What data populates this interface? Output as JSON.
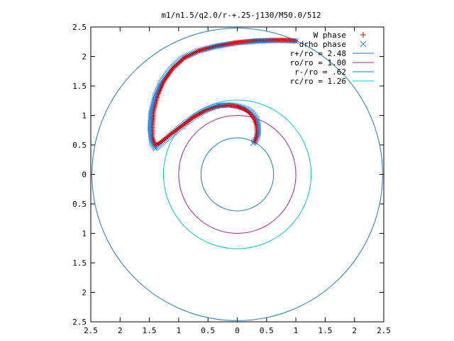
{
  "chart_data": {
    "type": "scatter",
    "title": "m1/n1.5/q2.0/r-+.25-j130/M50.0/512",
    "xlabel": "",
    "ylabel": "",
    "xlim": [
      -2.5,
      2.5
    ],
    "ylim": [
      -2.5,
      2.5
    ],
    "grid": false,
    "legend_position": "top-right",
    "x_ticks": [
      {
        "value": -2.5,
        "label": "2.5"
      },
      {
        "value": -2,
        "label": "2"
      },
      {
        "value": -1.5,
        "label": "1.5"
      },
      {
        "value": -1,
        "label": "1"
      },
      {
        "value": -0.5,
        "label": "0.5"
      },
      {
        "value": 0,
        "label": "0"
      },
      {
        "value": 0.5,
        "label": "0.5"
      },
      {
        "value": 1,
        "label": "1"
      },
      {
        "value": 1.5,
        "label": "1.5"
      },
      {
        "value": 2,
        "label": "2"
      },
      {
        "value": 2.5,
        "label": "2.5"
      }
    ],
    "y_ticks": [
      {
        "value": 2.5,
        "label": "2.5"
      },
      {
        "value": 2,
        "label": "2"
      },
      {
        "value": 1.5,
        "label": "1.5"
      },
      {
        "value": 1,
        "label": "1"
      },
      {
        "value": 0.5,
        "label": "0.5"
      },
      {
        "value": 0,
        "label": "0"
      },
      {
        "value": -0.5,
        "label": "0.5"
      },
      {
        "value": -1,
        "label": "1"
      },
      {
        "value": -1.5,
        "label": "1.5"
      },
      {
        "value": -2,
        "label": "2"
      },
      {
        "value": -2.5,
        "label": "2.5"
      }
    ],
    "circles": [
      {
        "name": "r+/ro = 2.48",
        "radius": 2.48,
        "color": "#1a7bc4"
      },
      {
        "name": "ro/ro = 1.00",
        "radius": 1.0,
        "color": "#a020a0"
      },
      {
        "name": "r-/ro = .62",
        "radius": 0.62,
        "color": "#1a7bc4"
      },
      {
        "name": "rc/ro = 1.26",
        "radius": 1.26,
        "color": "#00c8d8"
      }
    ],
    "series": [
      {
        "name": "W phase",
        "marker": "plus",
        "color": "#e00000",
        "x": [
          0.3,
          0.32,
          0.33,
          0.32,
          0.28,
          0.2,
          0.1,
          0.0,
          -0.15,
          -0.35,
          -0.55,
          -0.75,
          -0.95,
          -1.15,
          -1.3,
          -1.4,
          -1.44,
          -1.44,
          -1.42,
          -1.35,
          -1.25,
          -1.1,
          -0.9,
          -0.65,
          -0.35,
          0.0,
          0.3,
          0.6,
          0.85,
          1.0
        ],
        "y": [
          0.55,
          0.62,
          0.72,
          0.84,
          0.95,
          1.05,
          1.11,
          1.15,
          1.17,
          1.15,
          1.08,
          0.97,
          0.82,
          0.67,
          0.55,
          0.5,
          0.62,
          0.82,
          1.08,
          1.35,
          1.58,
          1.8,
          1.98,
          2.1,
          2.18,
          2.24,
          2.27,
          2.28,
          2.28,
          2.27
        ]
      },
      {
        "name": "drho phase",
        "marker": "x",
        "color": "#1a8ae8",
        "x": [
          0.27,
          0.33,
          0.36,
          0.36,
          0.33,
          0.26,
          0.16,
          0.04,
          -0.12,
          -0.32,
          -0.52,
          -0.72,
          -0.92,
          -1.12,
          -1.28,
          -1.4,
          -1.46,
          -1.49,
          -1.47,
          -1.4,
          -1.3,
          -1.14,
          -0.94,
          -0.68,
          -0.38,
          -0.02,
          0.3,
          0.6,
          0.85,
          1.0
        ],
        "y": [
          0.53,
          0.6,
          0.7,
          0.82,
          0.94,
          1.04,
          1.11,
          1.15,
          1.18,
          1.17,
          1.1,
          0.99,
          0.84,
          0.68,
          0.54,
          0.44,
          0.55,
          0.78,
          1.05,
          1.33,
          1.56,
          1.78,
          1.97,
          2.09,
          2.17,
          2.23,
          2.26,
          2.27,
          2.27,
          2.26
        ]
      }
    ]
  }
}
